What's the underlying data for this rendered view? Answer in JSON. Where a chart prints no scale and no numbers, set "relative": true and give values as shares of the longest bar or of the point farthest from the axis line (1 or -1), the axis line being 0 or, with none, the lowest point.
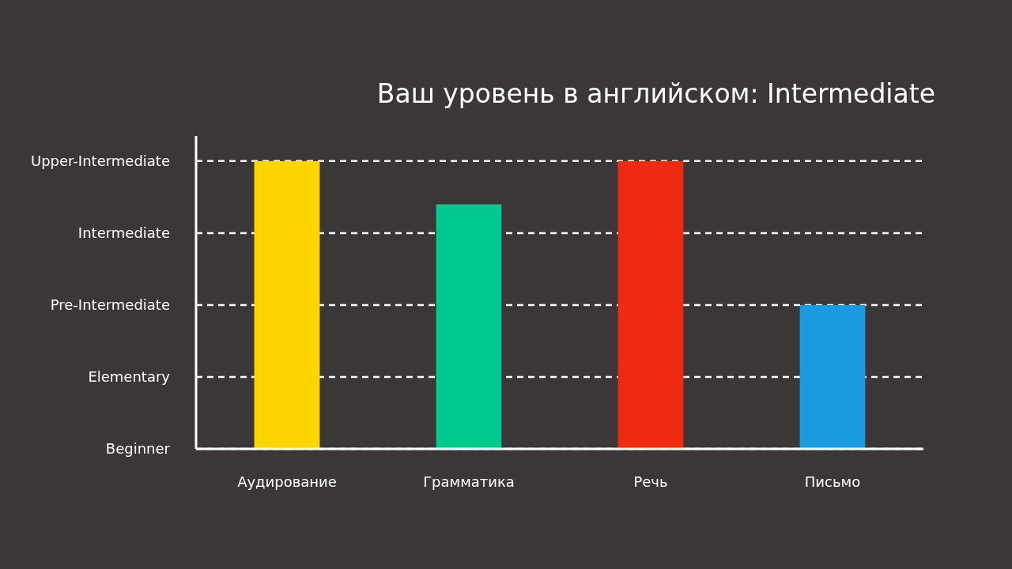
{
  "chart_data": {
    "type": "bar",
    "title": "Ваш уровень в английском: Intermediate",
    "categories": [
      "Аудирование",
      "Грамматика",
      "Речь",
      "Письмо"
    ],
    "values": [
      1,
      0.85,
      1,
      0.5
    ],
    "colors": [
      "#ffd500",
      "#00c98d",
      "#f02a10",
      "#1a9be0"
    ],
    "relative": true,
    "ref_lines": [
      {
        "axis": "y",
        "value": 0,
        "label": "Beginner",
        "color": "#ffffff",
        "line_style": "dashed"
      },
      {
        "axis": "y",
        "value": 0.25,
        "label": "Elementary",
        "color": "#ffffff",
        "line_style": "dashed"
      },
      {
        "axis": "y",
        "value": 0.5,
        "label": "Pre-Intermediate",
        "color": "#ffffff",
        "line_style": "dashed"
      },
      {
        "axis": "y",
        "value": 0.75,
        "label": "Intermediate",
        "color": "#ffffff",
        "line_style": "dashed"
      },
      {
        "axis": "y",
        "value": 1,
        "label": "Upper-Intermediate",
        "color": "#ffffff",
        "line_style": "dashed"
      }
    ]
  }
}
